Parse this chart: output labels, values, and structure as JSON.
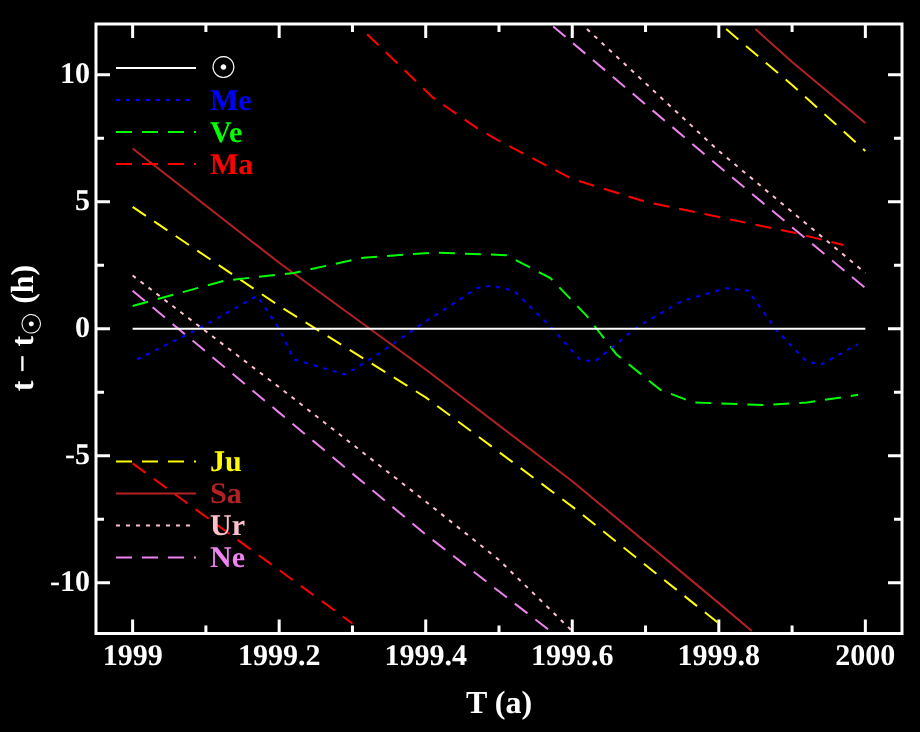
{
  "chart_data": {
    "type": "line",
    "xlabel": "T (a)",
    "ylabel": "t − t$_{☉}$ (h)",
    "xlim": [
      1998.95,
      2000.05
    ],
    "ylim": [
      -12,
      12
    ],
    "xticks": [
      1999,
      {
        "value": 1999.1,
        "label": null
      },
      1999.2,
      {
        "value": 1999.3,
        "label": null
      },
      1999.4,
      {
        "value": 1999.5,
        "label": null
      },
      1999.6,
      {
        "value": 1999.7,
        "label": null
      },
      1999.8,
      {
        "value": 1999.9,
        "label": null
      },
      2000
    ],
    "yticks": [
      -10,
      {
        "value": -7.5,
        "label": null
      },
      -5,
      {
        "value": -2.5,
        "label": null
      },
      0,
      {
        "value": 2.5,
        "label": null
      },
      5,
      {
        "value": 7.5,
        "label": null
      },
      10
    ],
    "grid": false,
    "legend": "left",
    "series": [
      {
        "name": "☉",
        "color": "#ffffff",
        "line_style": "solid",
        "x": [
          1999,
          2000
        ],
        "values": [
          0,
          0
        ]
      },
      {
        "name": "Me",
        "color": "#0000ff",
        "line_style": "dotted",
        "x": [
          1999.006,
          1999.09,
          1999.17,
          1999.2,
          1999.22,
          1999.29,
          1999.335,
          1999.39,
          1999.47,
          1999.49,
          1999.52,
          1999.57,
          1999.61,
          1999.63,
          1999.69,
          1999.75,
          1999.81,
          1999.84,
          1999.88,
          1999.92,
          1999.94,
          1999.99
        ],
        "values": [
          -1.2,
          0,
          1.3,
          0,
          -1.2,
          -1.8,
          -1.0,
          0.1,
          1.6,
          1.7,
          1.5,
          0.1,
          -1.2,
          -1.3,
          0.1,
          1.1,
          1.6,
          1.5,
          -0.1,
          -1.3,
          -1.4,
          -0.6
        ]
      },
      {
        "name": "Ve",
        "color": "#00ff00",
        "line_style": "dashed",
        "x": [
          1999,
          1999.126,
          1999.22,
          1999.315,
          1999.41,
          1999.51,
          1999.57,
          1999.62,
          1999.66,
          1999.72,
          1999.765,
          1999.86,
          1999.92,
          1999.99
        ],
        "values": [
          0.9,
          1.9,
          2.2,
          2.8,
          3.0,
          2.9,
          2.0,
          0.5,
          -1.0,
          -2.4,
          -2.9,
          -3.0,
          -2.9,
          -2.6
        ]
      },
      {
        "name": "Ma",
        "color": "#ff0000",
        "line_style": "dashed",
        "x": [
          1999,
          1999.1,
          1999.2,
          1999.3,
          1999.31,
          1999.32,
          1999.41,
          1999.47,
          1999.5,
          1999.6,
          1999.7,
          1999.8,
          1999.9,
          1999.97
        ],
        "values": [
          -5.3,
          -7.4,
          -9.5,
          -11.6,
          null,
          11.6,
          9.1,
          7.9,
          7.4,
          5.9,
          5.0,
          4.4,
          3.8,
          3.3
        ]
      },
      {
        "name": "Ju",
        "color": "#ffff00",
        "line_style": "dashed",
        "x": [
          1999,
          1999.2,
          1999.4,
          1999.6,
          1999.8,
          1999.805,
          1999.81,
          1999.9,
          2000
        ],
        "values": [
          4.8,
          0.9,
          -2.7,
          -7.0,
          -11.6,
          null,
          11.8,
          9.6,
          7.0
        ]
      },
      {
        "name": "Sa",
        "color": "#b22222",
        "line_style": "solid",
        "x": [
          1999,
          1999.2,
          1999.4,
          1999.6,
          1999.8,
          1999.845,
          1999.847,
          1999.85,
          1999.9,
          2000
        ],
        "values": [
          7.1,
          2.6,
          -1.6,
          -6.0,
          -10.8,
          -11.9,
          null,
          11.8,
          10.5,
          8.1
        ]
      },
      {
        "name": "Ur",
        "color": "#ffc0cb",
        "line_style": "dotted",
        "x": [
          1999,
          1999.2,
          1999.4,
          1999.5,
          1999.6,
          1999.61,
          1999.62,
          1999.8,
          2000
        ],
        "values": [
          2.1,
          -2.3,
          -6.8,
          -9.1,
          -11.9,
          null,
          11.8,
          7.0,
          2.2
        ]
      },
      {
        "name": "Ne",
        "color": "#ee82ee",
        "line_style": "dashed",
        "x": [
          1999,
          1999.2,
          1999.4,
          1999.57,
          1999.572,
          1999.574,
          1999.8,
          2000
        ],
        "values": [
          1.5,
          -3.3,
          -8.1,
          -11.9,
          null,
          11.9,
          6.4,
          1.6
        ]
      }
    ]
  }
}
